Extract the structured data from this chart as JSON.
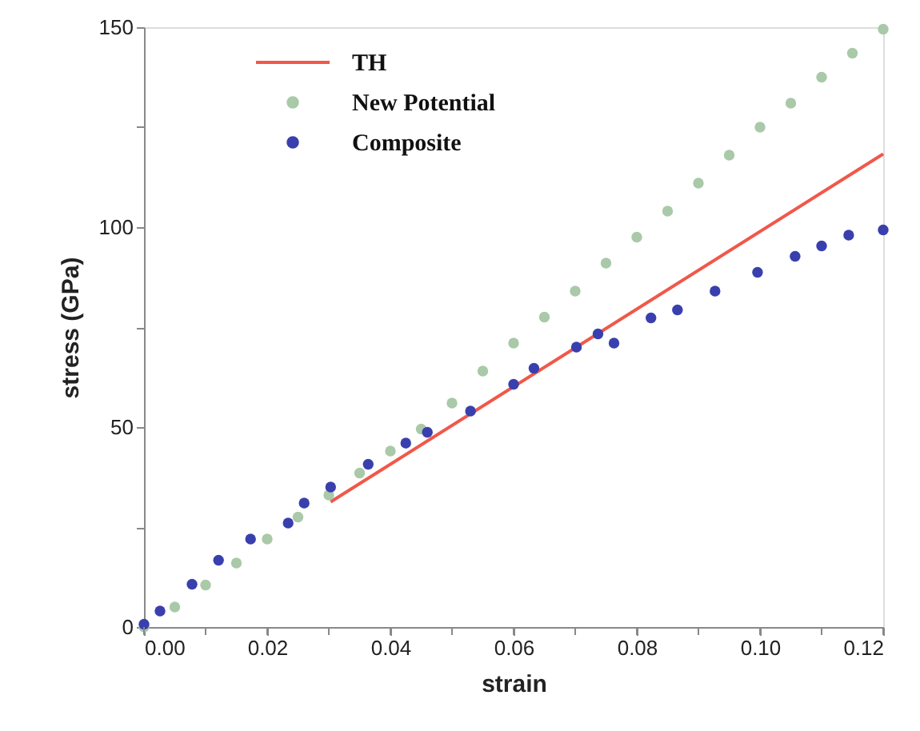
{
  "chart_data": {
    "type": "scatter",
    "xlabel": "strain",
    "ylabel": "stress (GPa)",
    "xlim": [
      0,
      0.12
    ],
    "ylim": [
      0,
      150
    ],
    "xticks": [
      {
        "value": 0,
        "label": "0.00"
      },
      {
        "value": 0.01,
        "label": null
      },
      {
        "value": 0.02,
        "label": "0.02"
      },
      {
        "value": 0.03,
        "label": null
      },
      {
        "value": 0.04,
        "label": "0.04"
      },
      {
        "value": 0.05,
        "label": null
      },
      {
        "value": 0.06,
        "label": "0.06"
      },
      {
        "value": 0.07,
        "label": null
      },
      {
        "value": 0.08,
        "label": "0.08"
      },
      {
        "value": 0.09,
        "label": null
      },
      {
        "value": 0.1,
        "label": "0.10"
      },
      {
        "value": 0.11,
        "label": null
      },
      {
        "value": 0.12,
        "label": "0.12"
      }
    ],
    "yticks": [
      0,
      {
        "value": 25,
        "label": null
      },
      50,
      {
        "value": 75,
        "label": null
      },
      100,
      {
        "value": 125,
        "label": null
      },
      150
    ],
    "grid": false,
    "legend": "top left",
    "marker": "circle",
    "series": [
      {
        "name": "TH",
        "type": "line",
        "color": "#f0584a",
        "marker": "none",
        "line_style": "solid",
        "x": [
          0.0303,
          0.12
        ],
        "values": [
          31.3,
          118.3
        ]
      },
      {
        "name": "New Potential",
        "color": "#a9c9a9",
        "x": [
          0,
          0.005,
          0.01,
          0.015,
          0.02,
          0.025,
          0.03,
          0.035,
          0.04,
          0.045,
          0.05,
          0.055,
          0.06,
          0.065,
          0.07,
          0.075,
          0.08,
          0.085,
          0.09,
          0.095,
          0.1,
          0.105,
          0.11,
          0.115,
          0.12
        ],
        "values": [
          0,
          5,
          10.5,
          16,
          22,
          27.5,
          33,
          38.5,
          44,
          49.5,
          56,
          64,
          71,
          77.5,
          84,
          91,
          97.5,
          104,
          111,
          118,
          125,
          131,
          137.5,
          143.5,
          149.5
        ]
      },
      {
        "name": "Composite",
        "color": "#3a3fae",
        "x": [
          0,
          0.0026,
          0.0078,
          0.0121,
          0.0173,
          0.0234,
          0.026,
          0.0303,
          0.0364,
          0.0425,
          0.046,
          0.053,
          0.06,
          0.0633,
          0.0702,
          0.0737,
          0.0763,
          0.0823,
          0.0866,
          0.0927,
          0.0996,
          0.1057,
          0.11,
          0.1144,
          0.12
        ],
        "values": [
          0.7,
          4,
          10.7,
          16.7,
          22,
          26,
          31,
          35,
          40.7,
          46,
          48.7,
          54,
          60.7,
          64.7,
          70,
          73.3,
          71,
          77.3,
          79.3,
          84,
          88.7,
          92.7,
          95.3,
          98,
          99.3
        ]
      }
    ]
  }
}
